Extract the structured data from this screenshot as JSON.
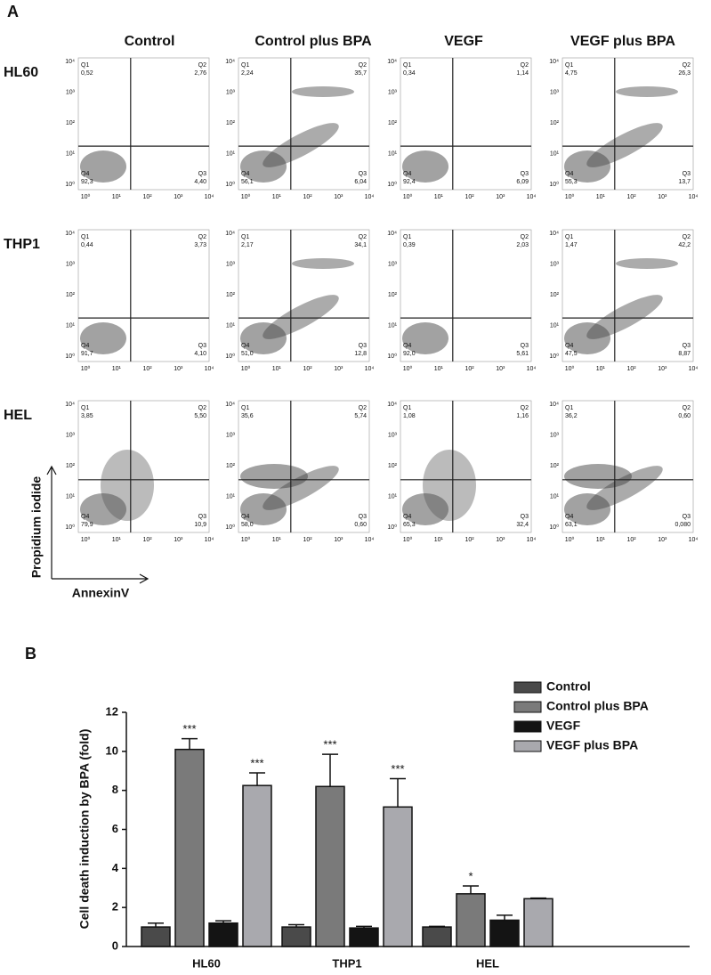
{
  "panel_a": {
    "label": "A",
    "columns": [
      "Control",
      "Control plus BPA",
      "VEGF",
      "VEGF plus BPA"
    ],
    "quadrant_names": [
      "Q1",
      "Q2",
      "Q3",
      "Q4"
    ],
    "x_ticks": [
      "10⁰",
      "10¹",
      "10²",
      "10³",
      "10⁴"
    ],
    "y_ticks": [
      "10⁰",
      "10¹",
      "10²",
      "10³",
      "10⁴"
    ],
    "x_label": "AnnexinV",
    "y_label": "Propidium iodide",
    "rows": [
      {
        "name": "HL60",
        "plots": [
          {
            "q1": "0,52",
            "q2": "2,76",
            "q3": "4,40",
            "q4": "92,3"
          },
          {
            "q1": "2,24",
            "q2": "35,7",
            "q3": "6,04",
            "q4": "56,1"
          },
          {
            "q1": "0,34",
            "q2": "1,14",
            "q3": "6,09",
            "q4": "92,4"
          },
          {
            "q1": "4,75",
            "q2": "26,3",
            "q3": "13,7",
            "q4": "55,3"
          }
        ]
      },
      {
        "name": "THP1",
        "plots": [
          {
            "q1": "0,44",
            "q2": "3,73",
            "q3": "4,10",
            "q4": "91,7"
          },
          {
            "q1": "2,17",
            "q2": "34,1",
            "q3": "12,8",
            "q4": "51,0"
          },
          {
            "q1": "0,39",
            "q2": "2,03",
            "q3": "5,61",
            "q4": "92,0"
          },
          {
            "q1": "1,47",
            "q2": "42,2",
            "q3": "8,87",
            "q4": "47,5"
          }
        ]
      },
      {
        "name": "HEL",
        "plots": [
          {
            "q1": "3,85",
            "q2": "5,50",
            "q3": "10,9",
            "q4": "79,9"
          },
          {
            "q1": "35,6",
            "q2": "5,74",
            "q3": "0,60",
            "q4": "58,0"
          },
          {
            "q1": "1,08",
            "q2": "1,16",
            "q3": "32,4",
            "q4": "65,3"
          },
          {
            "q1": "36,2",
            "q2": "0,60",
            "q3": "0,080",
            "q4": "63,1"
          }
        ]
      }
    ]
  },
  "chart_data": {
    "type": "bar",
    "panel_label": "B",
    "y_label": "Cell death induction by BPA (fold)",
    "categories": [
      "HL60",
      "THP1",
      "HEL"
    ],
    "series": [
      {
        "name": "Control",
        "color": "#4a4a4a",
        "values": [
          1.0,
          1.0,
          1.0
        ],
        "errors": [
          0.2,
          0.12,
          0.03
        ],
        "annotations": [
          null,
          null,
          null
        ]
      },
      {
        "name": "Control plus BPA",
        "color": "#7a7a7a",
        "values": [
          10.1,
          8.2,
          2.7
        ],
        "errors": [
          0.55,
          1.65,
          0.4
        ],
        "annotations": [
          "***",
          "***",
          "*"
        ]
      },
      {
        "name": "VEGF",
        "color": "#141414",
        "values": [
          1.2,
          0.95,
          1.35
        ],
        "errors": [
          0.12,
          0.08,
          0.25
        ],
        "annotations": [
          null,
          null,
          null
        ]
      },
      {
        "name": "VEGF plus BPA",
        "color": "#a9a9ae",
        "values": [
          8.25,
          7.15,
          2.45
        ],
        "errors": [
          0.65,
          1.45,
          0.03
        ],
        "annotations": [
          "***",
          "***",
          null
        ]
      }
    ],
    "ylim": [
      0,
      12
    ],
    "yticks": [
      0,
      2,
      4,
      6,
      8,
      10,
      12
    ]
  }
}
